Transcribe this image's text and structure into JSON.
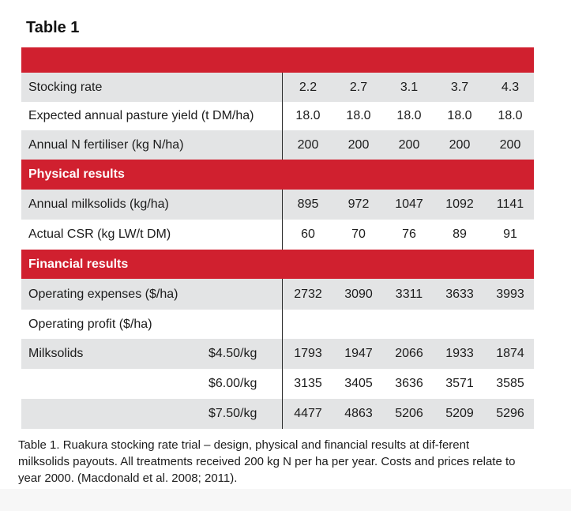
{
  "title": "Table 1",
  "rows": {
    "stocking_rate": {
      "label": "Stocking rate",
      "v": [
        "2.2",
        "2.7",
        "3.1",
        "3.7",
        "4.3"
      ]
    },
    "pasture_yield": {
      "label": "Expected annual pasture yield (t DM/ha)",
      "v": [
        "18.0",
        "18.0",
        "18.0",
        "18.0",
        "18.0"
      ]
    },
    "n_fertiliser": {
      "label": "Annual N fertiliser (kg N/ha)",
      "v": [
        "200",
        "200",
        "200",
        "200",
        "200"
      ]
    },
    "physical_header": "Physical results",
    "milksolids": {
      "label": "Annual milksolids (kg/ha)",
      "v": [
        "895",
        "972",
        "1047",
        "1092",
        "1141"
      ]
    },
    "csr": {
      "label": "Actual CSR (kg LW/t DM)",
      "v": [
        "60",
        "70",
        "76",
        "89",
        "91"
      ]
    },
    "financial_header": "Financial results",
    "opex": {
      "label": "Operating expenses ($/ha)",
      "v": [
        "2732",
        "3090",
        "3311",
        "3633",
        "3993"
      ]
    },
    "op_profit": {
      "label": "Operating profit ($/ha)"
    },
    "ms_450": {
      "label": "Milksolids",
      "price": "$4.50/kg",
      "v": [
        "1793",
        "1947",
        "2066",
        "1933",
        "1874"
      ]
    },
    "ms_600": {
      "label": "",
      "price": "$6.00/kg",
      "v": [
        "3135",
        "3405",
        "3636",
        "3571",
        "3585"
      ]
    },
    "ms_750": {
      "label": "",
      "price": "$7.50/kg",
      "v": [
        "4477",
        "4863",
        "5206",
        "5209",
        "5296"
      ]
    }
  },
  "caption": "Table 1. Ruakura stocking rate trial – design, physical and financial results at dif-ferent milksolids payouts. All treatments received 200 kg N per ha per year. Costs and prices relate to year 2000. (Macdonald et al. 2008; 2011).",
  "colors": {
    "header_red": "#d0202f",
    "row_grey": "#e3e4e5"
  }
}
